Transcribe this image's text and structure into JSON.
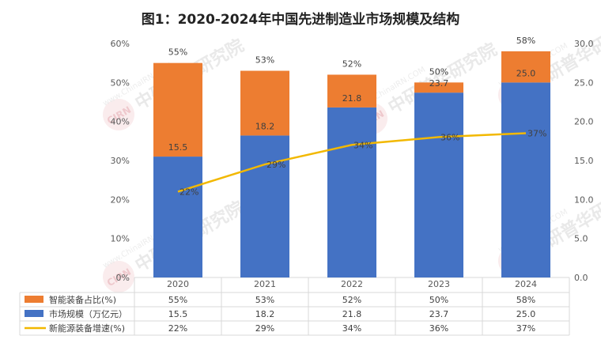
{
  "chart_data": {
    "type": "bar",
    "title": "图1：2020-2024年中国先进制造业市场规模及结构",
    "categories": [
      "2020",
      "2021",
      "2022",
      "2023",
      "2024"
    ],
    "series": [
      {
        "name": "智能装备占比(%)",
        "kind": "stacked-bar-top",
        "axis": "left",
        "values": [
          55,
          53,
          52,
          50,
          58
        ],
        "labels": [
          "55%",
          "53%",
          "52%",
          "50%",
          "58%"
        ],
        "color": "#ED7D31"
      },
      {
        "name": "市场规模（万亿元）",
        "kind": "stacked-bar-base",
        "axis": "right",
        "values": [
          15.5,
          18.2,
          21.8,
          23.7,
          25.0
        ],
        "labels": [
          "15.5",
          "18.2",
          "21.8",
          "23.7",
          "25.0"
        ],
        "color": "#4472C4"
      },
      {
        "name": "新能源装备增速(%)",
        "kind": "line",
        "axis": "left",
        "values": [
          22,
          29,
          34,
          36,
          37
        ],
        "labels": [
          "22%",
          "29%",
          "34%",
          "36%",
          "37%"
        ],
        "color": "#F2B800"
      }
    ],
    "left_axis": {
      "min": 0,
      "max": 60,
      "step": 10,
      "ticks": [
        "0%",
        "10%",
        "20%",
        "30%",
        "40%",
        "50%",
        "60%"
      ]
    },
    "right_axis": {
      "min": 0,
      "max": 30,
      "step": 5,
      "ticks": [
        "0.0",
        "5.0",
        "10.0",
        "15.0",
        "20.0",
        "25.0",
        "30.0"
      ]
    },
    "grid": false,
    "legend": "bottom data table"
  },
  "watermark": {
    "brand": "CIRN",
    "name_cn": "中研普华研究院",
    "url": "www.ChinaIRN.COM"
  }
}
